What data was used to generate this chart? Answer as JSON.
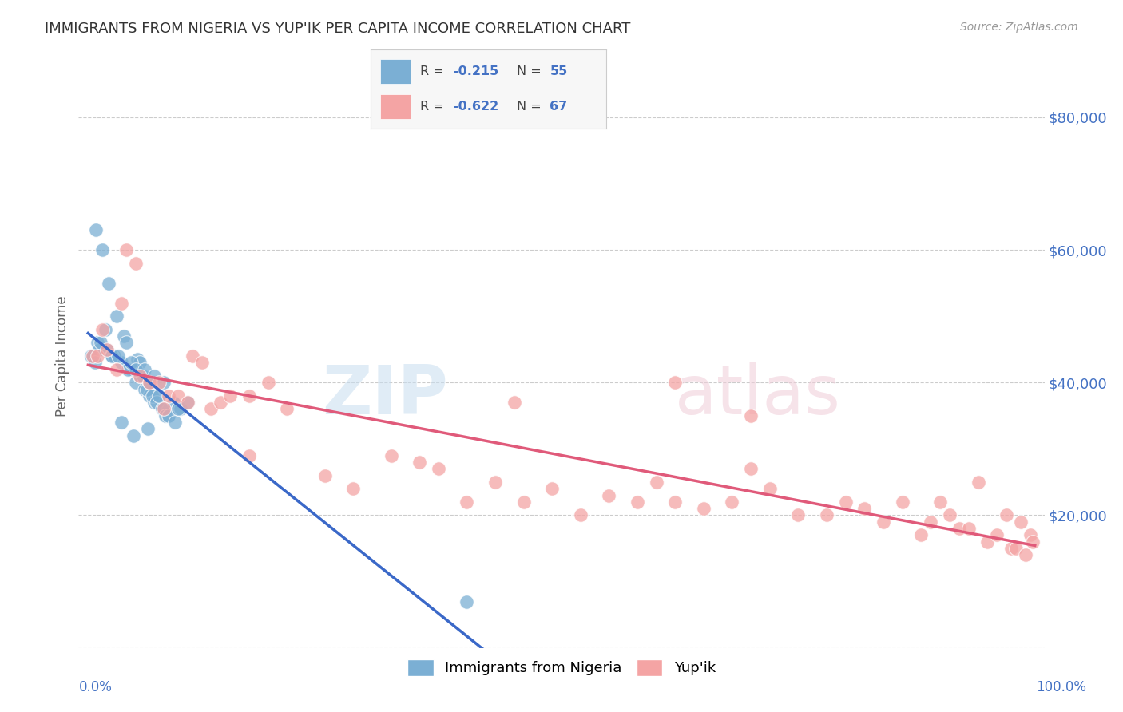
{
  "title": "IMMIGRANTS FROM NIGERIA VS YUP'IK PER CAPITA INCOME CORRELATION CHART",
  "source": "Source: ZipAtlas.com",
  "ylabel": "Per Capita Income",
  "background_color": "#ffffff",
  "color_blue": "#7bafd4",
  "color_pink": "#f4a4a4",
  "color_blue_line": "#3a68c8",
  "color_pink_line": "#e05a7a",
  "color_axis_label": "#4472c4",
  "legend_box_color": "#f2f2f2",
  "nigeria_x": [
    0.5,
    1.0,
    2.0,
    2.5,
    3.5,
    4.5,
    5.0,
    5.5,
    6.0,
    6.5,
    7.0,
    7.5,
    8.0,
    8.5,
    9.0,
    9.5,
    0.8,
    1.5,
    2.2,
    3.0,
    3.8,
    4.2,
    5.2,
    5.8,
    6.2,
    6.8,
    7.2,
    7.8,
    8.2,
    1.2,
    1.8,
    2.8,
    4.0,
    5.5,
    6.5,
    7.5,
    8.5,
    9.2,
    9.8,
    0.3,
    0.7,
    1.3,
    2.5,
    3.2,
    4.5,
    5.0,
    6.0,
    7.0,
    8.0,
    9.5,
    10.5,
    3.5,
    4.8,
    6.3,
    40.0
  ],
  "nigeria_y": [
    44000,
    46000,
    45000,
    44000,
    43000,
    42000,
    40000,
    41000,
    39000,
    38000,
    37000,
    38000,
    36000,
    35000,
    37000,
    36000,
    63000,
    60000,
    55000,
    50000,
    47000,
    42000,
    43500,
    41000,
    39000,
    38000,
    37000,
    36000,
    35000,
    45000,
    48000,
    44000,
    46000,
    43000,
    40000,
    38000,
    35000,
    34000,
    36000,
    44000,
    43000,
    46000,
    44000,
    44000,
    43000,
    42000,
    42000,
    41000,
    40000,
    36000,
    37000,
    34000,
    32000,
    33000,
    7000
  ],
  "yupik_x": [
    0.5,
    1.0,
    2.0,
    3.0,
    4.0,
    5.0,
    5.5,
    6.5,
    7.5,
    8.5,
    9.5,
    10.5,
    11.0,
    12.0,
    13.0,
    14.0,
    15.0,
    17.0,
    19.0,
    21.0,
    25.0,
    28.0,
    32.0,
    35.0,
    37.0,
    40.0,
    43.0,
    46.0,
    49.0,
    52.0,
    55.0,
    58.0,
    60.0,
    62.0,
    65.0,
    68.0,
    70.0,
    72.0,
    75.0,
    78.0,
    80.0,
    82.0,
    84.0,
    86.0,
    88.0,
    89.0,
    90.0,
    91.0,
    92.0,
    93.0,
    94.0,
    95.0,
    96.0,
    97.0,
    97.5,
    98.0,
    98.5,
    99.0,
    99.5,
    99.8,
    1.5,
    3.5,
    8.0,
    17.0,
    45.0,
    62.0,
    70.0
  ],
  "yupik_y": [
    44000,
    44000,
    45000,
    42000,
    60000,
    58000,
    41000,
    40000,
    40000,
    38000,
    38000,
    37000,
    44000,
    43000,
    36000,
    37000,
    38000,
    29000,
    40000,
    36000,
    26000,
    24000,
    29000,
    28000,
    27000,
    22000,
    25000,
    22000,
    24000,
    20000,
    23000,
    22000,
    25000,
    22000,
    21000,
    22000,
    27000,
    24000,
    20000,
    20000,
    22000,
    21000,
    19000,
    22000,
    17000,
    19000,
    22000,
    20000,
    18000,
    18000,
    25000,
    16000,
    17000,
    20000,
    15000,
    15000,
    19000,
    14000,
    17000,
    16000,
    48000,
    52000,
    36000,
    38000,
    37000,
    40000,
    35000
  ]
}
